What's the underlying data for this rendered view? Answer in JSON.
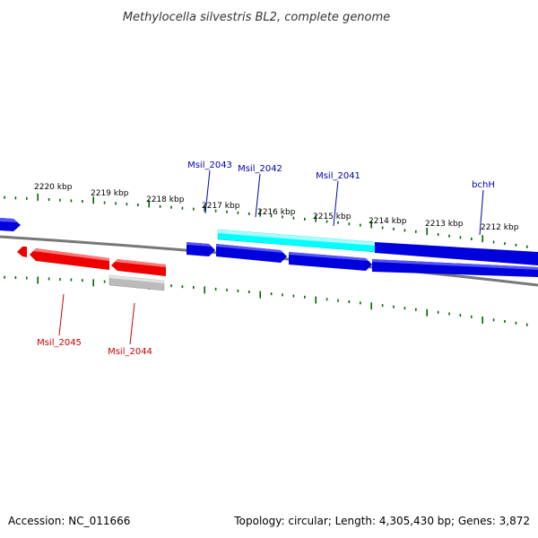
{
  "title": "Methylocella silvestris BL2, complete genome",
  "accession_text": "Accession: NC_011666",
  "summary_text": "Topology: circular; Length: 4,305,430 bp; Genes: 3,872",
  "colors": {
    "forward": "#0000dd",
    "forward_label": "#0000aa",
    "reverse": "#ee0000",
    "reverse_label": "#cc0000",
    "highlight": "#00ffff",
    "pseudo": "#bbbbbb",
    "ticks": "#006600",
    "backbone": "#777777"
  },
  "ticks": [
    "2220 kbp",
    "2219 kbp",
    "2218 kbp",
    "2217 kbp",
    "2216 kbp",
    "2215 kbp",
    "2214 kbp",
    "2213 kbp",
    "2212 kbp"
  ],
  "forward_genes": [
    {
      "label": "",
      "kind": "forward"
    },
    {
      "label": "Msil_2043",
      "kind": "forward"
    },
    {
      "label": "Msil_2042",
      "kind": "forward"
    },
    {
      "label": "Msil_2041",
      "kind": "forward"
    },
    {
      "label": "bchH",
      "kind": "forward"
    }
  ],
  "highlight_feature": {
    "label": "",
    "kind": "highlight"
  },
  "reverse_genes": [
    {
      "label": "",
      "kind": "reverse"
    },
    {
      "label": "Msil_2045",
      "kind": "reverse"
    },
    {
      "label": "Msil_2044",
      "kind": "reverse"
    }
  ],
  "pseudo_feature": {
    "label": "",
    "kind": "pseudo"
  }
}
